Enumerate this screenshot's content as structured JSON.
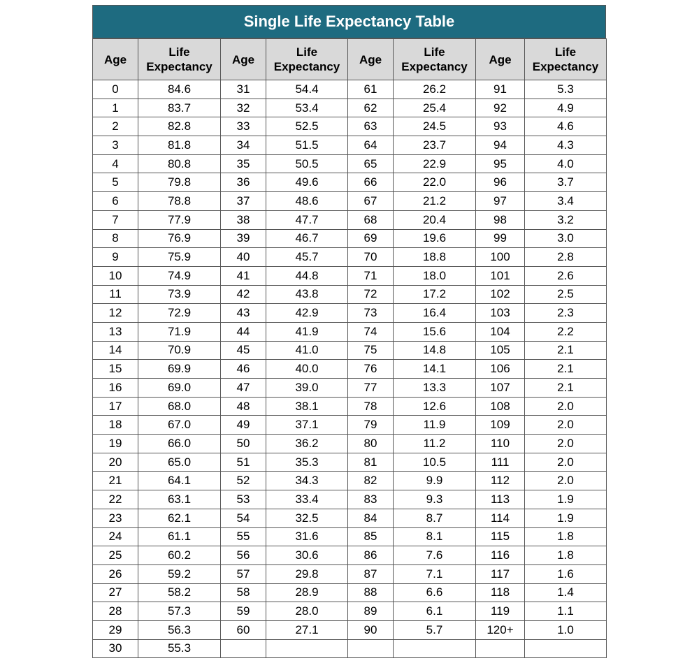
{
  "title": "Single Life Expectancy Table",
  "table": {
    "headers": [
      "Age",
      "Life Expectancy",
      "Age",
      "Life Expectancy",
      "Age",
      "Life Expectancy",
      "Age",
      "Life Expectancy"
    ],
    "rows": [
      [
        "0",
        "84.6",
        "31",
        "54.4",
        "61",
        "26.2",
        "91",
        "5.3"
      ],
      [
        "1",
        "83.7",
        "32",
        "53.4",
        "62",
        "25.4",
        "92",
        "4.9"
      ],
      [
        "2",
        "82.8",
        "33",
        "52.5",
        "63",
        "24.5",
        "93",
        "4.6"
      ],
      [
        "3",
        "81.8",
        "34",
        "51.5",
        "64",
        "23.7",
        "94",
        "4.3"
      ],
      [
        "4",
        "80.8",
        "35",
        "50.5",
        "65",
        "22.9",
        "95",
        "4.0"
      ],
      [
        "5",
        "79.8",
        "36",
        "49.6",
        "66",
        "22.0",
        "96",
        "3.7"
      ],
      [
        "6",
        "78.8",
        "37",
        "48.6",
        "67",
        "21.2",
        "97",
        "3.4"
      ],
      [
        "7",
        "77.9",
        "38",
        "47.7",
        "68",
        "20.4",
        "98",
        "3.2"
      ],
      [
        "8",
        "76.9",
        "39",
        "46.7",
        "69",
        "19.6",
        "99",
        "3.0"
      ],
      [
        "9",
        "75.9",
        "40",
        "45.7",
        "70",
        "18.8",
        "100",
        "2.8"
      ],
      [
        "10",
        "74.9",
        "41",
        "44.8",
        "71",
        "18.0",
        "101",
        "2.6"
      ],
      [
        "11",
        "73.9",
        "42",
        "43.8",
        "72",
        "17.2",
        "102",
        "2.5"
      ],
      [
        "12",
        "72.9",
        "43",
        "42.9",
        "73",
        "16.4",
        "103",
        "2.3"
      ],
      [
        "13",
        "71.9",
        "44",
        "41.9",
        "74",
        "15.6",
        "104",
        "2.2"
      ],
      [
        "14",
        "70.9",
        "45",
        "41.0",
        "75",
        "14.8",
        "105",
        "2.1"
      ],
      [
        "15",
        "69.9",
        "46",
        "40.0",
        "76",
        "14.1",
        "106",
        "2.1"
      ],
      [
        "16",
        "69.0",
        "47",
        "39.0",
        "77",
        "13.3",
        "107",
        "2.1"
      ],
      [
        "17",
        "68.0",
        "48",
        "38.1",
        "78",
        "12.6",
        "108",
        "2.0"
      ],
      [
        "18",
        "67.0",
        "49",
        "37.1",
        "79",
        "11.9",
        "109",
        "2.0"
      ],
      [
        "19",
        "66.0",
        "50",
        "36.2",
        "80",
        "11.2",
        "110",
        "2.0"
      ],
      [
        "20",
        "65.0",
        "51",
        "35.3",
        "81",
        "10.5",
        "111",
        "2.0"
      ],
      [
        "21",
        "64.1",
        "52",
        "34.3",
        "82",
        "9.9",
        "112",
        "2.0"
      ],
      [
        "22",
        "63.1",
        "53",
        "33.4",
        "83",
        "9.3",
        "113",
        "1.9"
      ],
      [
        "23",
        "62.1",
        "54",
        "32.5",
        "84",
        "8.7",
        "114",
        "1.9"
      ],
      [
        "24",
        "61.1",
        "55",
        "31.6",
        "85",
        "8.1",
        "115",
        "1.8"
      ],
      [
        "25",
        "60.2",
        "56",
        "30.6",
        "86",
        "7.6",
        "116",
        "1.8"
      ],
      [
        "26",
        "59.2",
        "57",
        "29.8",
        "87",
        "7.1",
        "117",
        "1.6"
      ],
      [
        "27",
        "58.2",
        "58",
        "28.9",
        "88",
        "6.6",
        "118",
        "1.4"
      ],
      [
        "28",
        "57.3",
        "59",
        "28.0",
        "89",
        "6.1",
        "119",
        "1.1"
      ],
      [
        "29",
        "56.3",
        "60",
        "27.1",
        "90",
        "5.7",
        "120+",
        "1.0"
      ],
      [
        "30",
        "55.3"
      ]
    ]
  }
}
